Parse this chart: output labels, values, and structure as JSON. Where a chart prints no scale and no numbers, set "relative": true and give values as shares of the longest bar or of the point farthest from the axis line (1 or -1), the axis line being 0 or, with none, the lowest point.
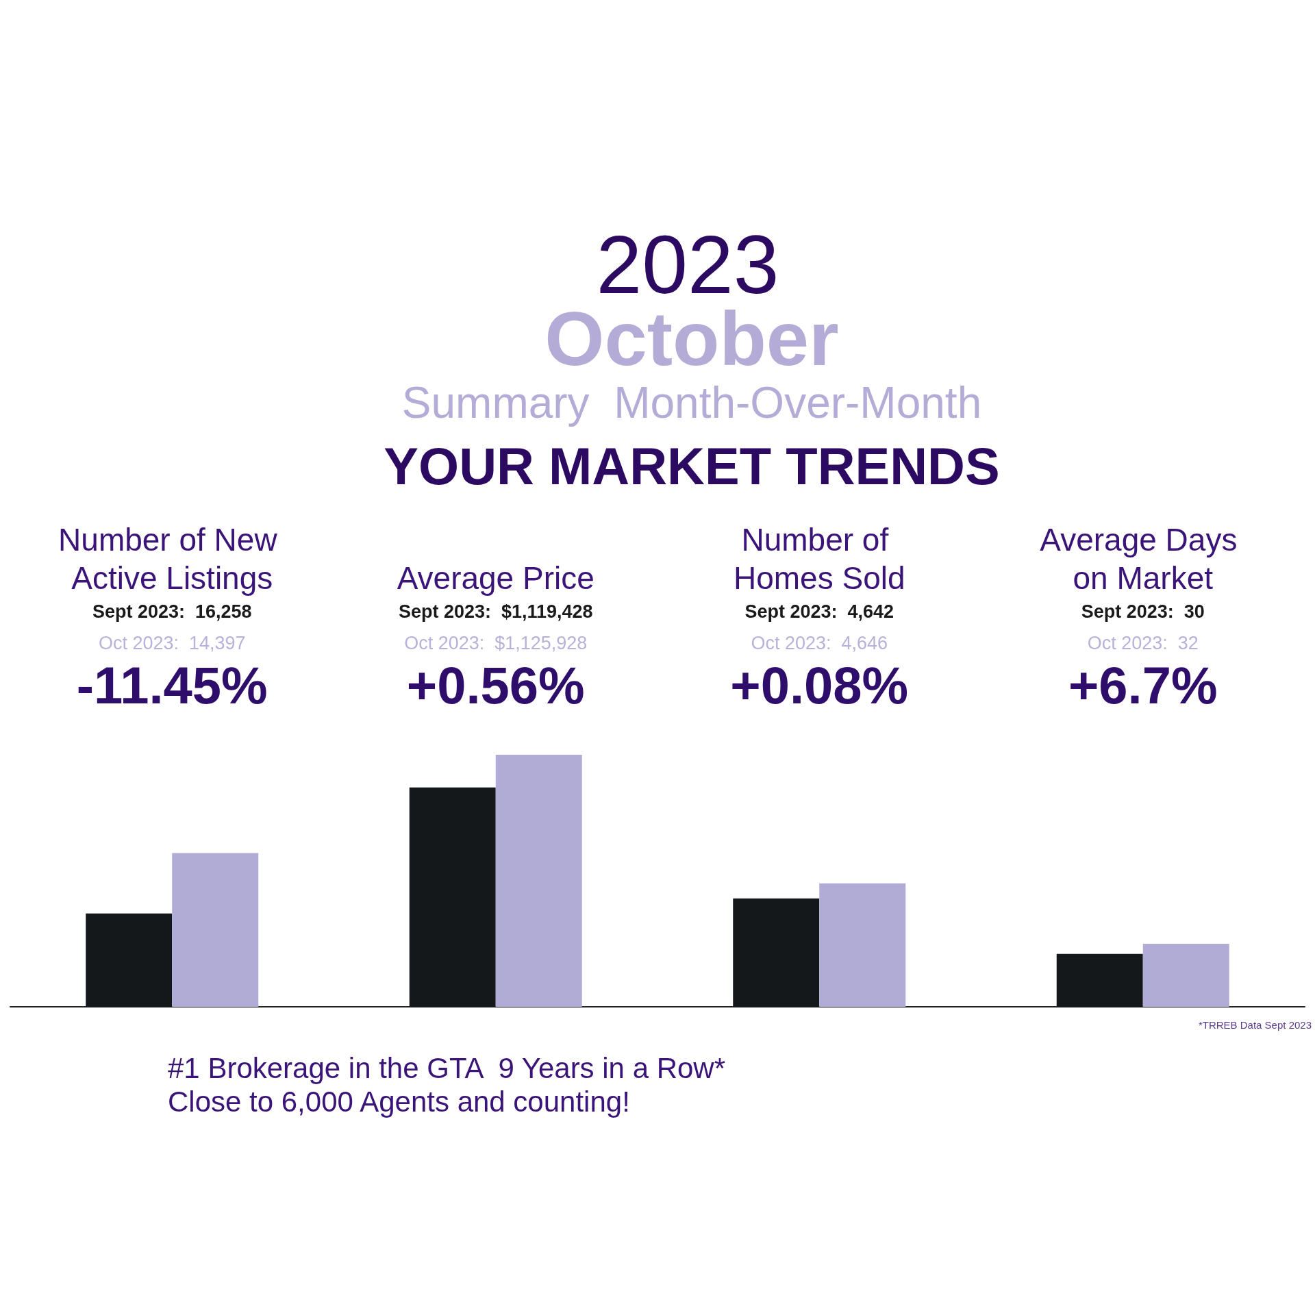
{
  "chart_data": {
    "type": "bar",
    "title": "2023",
    "subtitle": "October",
    "categories": [
      "Number of New Active Listings",
      "Average Price",
      "Number of Homes Sold",
      "Average Days on Market"
    ],
    "relative": true,
    "series": [
      {
        "color": "#14181b",
        "values": [
          0.37,
          0.87,
          0.43,
          0.21
        ]
      },
      {
        "color": "#b1acd6",
        "values": [
          0.61,
          1,
          0.49,
          0.25
        ]
      }
    ],
    "annotations": [
      "Summary  Month-Over-Month",
      "YOUR MARKET TRENDS",
      "#1 Brokerage in the GTA  9 Years in a Row*",
      "Close to 6,000 Agents and counting!",
      "*TRREB Data Sept 2023",
      "Sept 2023:  16,258",
      "Oct 2023:  14,397",
      "-11.45%",
      "Sept 2023:  $1,119,428",
      "Oct 2023:  $1,125,928",
      "+0.56%",
      "Sept 2023:  4,642",
      "Oct 2023:  4,646",
      "+0.08%",
      "Sept 2023:  30",
      "Oct 2023:  32",
      "+6.7%"
    ]
  }
}
